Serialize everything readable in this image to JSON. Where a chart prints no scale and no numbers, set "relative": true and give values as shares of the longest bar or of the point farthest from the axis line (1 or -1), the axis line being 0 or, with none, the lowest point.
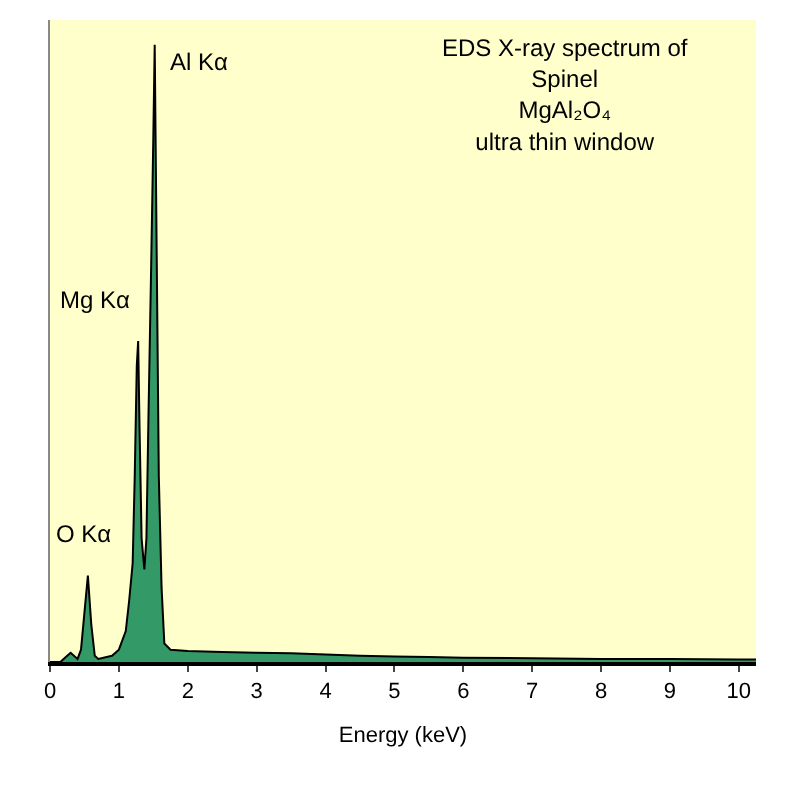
{
  "chart_data": {
    "type": "area",
    "title": "EDS X-ray spectrum of\nSpinel\nMgAl₂O₄\nultra thin window",
    "xlabel": "Energy (keV)",
    "relative": true,
    "tick_labels": "x",
    "xlim": [
      0,
      10.25
    ],
    "xticks": [
      0,
      1,
      2,
      3,
      4,
      5,
      6,
      7,
      8,
      9,
      10
    ],
    "x": [
      0,
      0.15,
      0.25,
      0.3,
      0.4,
      0.45,
      0.5,
      0.55,
      0.6,
      0.65,
      0.7,
      0.9,
      1.0,
      1.1,
      1.15,
      1.2,
      1.23,
      1.26,
      1.28,
      1.3,
      1.33,
      1.37,
      1.4,
      1.43,
      1.47,
      1.5,
      1.52,
      1.55,
      1.58,
      1.62,
      1.66,
      1.75,
      2.0,
      2.5,
      3.0,
      3.5,
      4.0,
      4.5,
      5.0,
      5.5,
      6.0,
      7.0,
      8.0,
      9.0,
      10.0,
      10.25
    ],
    "series": [
      {
        "color": "#339966",
        "values": [
          0,
          0,
          0.01,
          0.015,
          0.005,
          0.02,
          0.08,
          0.14,
          0.06,
          0.01,
          0.005,
          0.01,
          0.02,
          0.05,
          0.1,
          0.16,
          0.3,
          0.48,
          0.52,
          0.38,
          0.2,
          0.15,
          0.2,
          0.4,
          0.65,
          0.85,
          1.0,
          0.65,
          0.3,
          0.12,
          0.03,
          0.02,
          0.018,
          0.016,
          0.015,
          0.014,
          0.012,
          0.01,
          0.009,
          0.008,
          0.007,
          0.006,
          0.005,
          0.005,
          0.004,
          0.004
        ]
      }
    ],
    "annotations": [
      {
        "text": "Al Kα",
        "x": 1.52,
        "y": 1.0
      },
      {
        "text": "Mg Kα",
        "x": 1.28,
        "y": 0.52
      },
      {
        "text": "O Kα",
        "x": 0.55,
        "y": 0.14
      }
    ]
  }
}
